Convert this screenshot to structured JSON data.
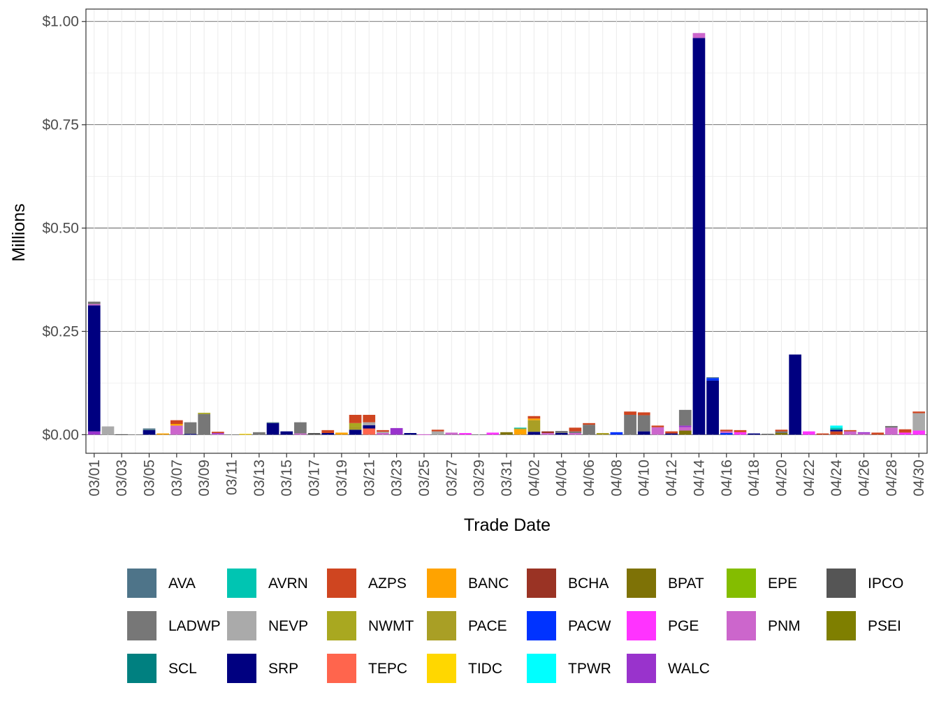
{
  "chart_data": {
    "type": "bar",
    "stacked": true,
    "title": "",
    "xlabel": "Trade Date",
    "ylabel": "Millions",
    "ylim": [
      -0.045,
      1.03
    ],
    "y_ticks": [
      0,
      0.25,
      0.5,
      0.75,
      1.0
    ],
    "y_tick_labels": [
      "$0.00",
      "$0.25",
      "$0.50",
      "$0.75",
      "$1.00"
    ],
    "grid": true,
    "legend_position": "bottom",
    "categories": [
      "03/01",
      "03/02",
      "03/03",
      "03/04",
      "03/05",
      "03/06",
      "03/07",
      "03/08",
      "03/09",
      "03/10",
      "03/11",
      "03/12",
      "03/13",
      "03/14",
      "03/15",
      "03/16",
      "03/17",
      "03/18",
      "03/19",
      "03/20",
      "03/21",
      "03/22",
      "03/23",
      "03/24",
      "03/25",
      "03/26",
      "03/27",
      "03/28",
      "03/29",
      "03/30",
      "03/31",
      "04/01",
      "04/02",
      "04/03",
      "04/04",
      "04/05",
      "04/06",
      "04/07",
      "04/08",
      "04/09",
      "04/10",
      "04/11",
      "04/12",
      "04/13",
      "04/14",
      "04/15",
      "04/16",
      "04/17",
      "04/18",
      "04/19",
      "04/20",
      "04/21",
      "04/22",
      "04/23",
      "04/24",
      "04/25",
      "04/26",
      "04/27",
      "04/28",
      "04/29",
      "04/30"
    ],
    "x_tick_labels": [
      "03/01",
      "03/03",
      "03/05",
      "03/07",
      "03/09",
      "03/11",
      "03/13",
      "03/15",
      "03/17",
      "03/19",
      "03/21",
      "03/23",
      "03/25",
      "03/27",
      "03/29",
      "03/31",
      "04/02",
      "04/04",
      "04/06",
      "04/08",
      "04/10",
      "04/12",
      "04/14",
      "04/16",
      "04/18",
      "04/20",
      "04/22",
      "04/24",
      "04/26",
      "04/28",
      "04/30"
    ],
    "legend": [
      {
        "name": "AVA",
        "color": "#4E7489"
      },
      {
        "name": "AVRN",
        "color": "#00C5B2"
      },
      {
        "name": "AZPS",
        "color": "#CF4520"
      },
      {
        "name": "BANC",
        "color": "#FFA300"
      },
      {
        "name": "BCHA",
        "color": "#9A3324"
      },
      {
        "name": "BPAT",
        "color": "#7E7206"
      },
      {
        "name": "EPE",
        "color": "#84BD00"
      },
      {
        "name": "IPCO",
        "color": "#555555"
      },
      {
        "name": "LADWP",
        "color": "#777777"
      },
      {
        "name": "NEVP",
        "color": "#AAAAAA"
      },
      {
        "name": "NWMT",
        "color": "#A9A820"
      },
      {
        "name": "PACE",
        "color": "#A99F25"
      },
      {
        "name": "PACW",
        "color": "#0033FF"
      },
      {
        "name": "PGE",
        "color": "#FF33FF"
      },
      {
        "name": "PNM",
        "color": "#CC66CC"
      },
      {
        "name": "PSEI",
        "color": "#7F7F00"
      },
      {
        "name": "SCL",
        "color": "#008080"
      },
      {
        "name": "SRP",
        "color": "#000080"
      },
      {
        "name": "TEPC",
        "color": "#FF654D"
      },
      {
        "name": "TIDC",
        "color": "#FFD700"
      },
      {
        "name": "TPWR",
        "color": "#00FFFF"
      },
      {
        "name": "WALC",
        "color": "#9933CC"
      }
    ],
    "bars": [
      {
        "date": "03/01",
        "segments": [
          {
            "name": "WALC",
            "value": 0.008
          },
          {
            "name": "SRP",
            "value": 0.305
          },
          {
            "name": "PNM",
            "value": 0.003
          },
          {
            "name": "LADWP",
            "value": 0.006
          }
        ]
      },
      {
        "date": "03/02",
        "segments": [
          {
            "name": "NEVP",
            "value": 0.02
          }
        ]
      },
      {
        "date": "03/03",
        "segments": [
          {
            "name": "IPCO",
            "value": 0.001
          }
        ]
      },
      {
        "date": "03/04",
        "segments": []
      },
      {
        "date": "03/05",
        "segments": [
          {
            "name": "SRP",
            "value": 0.011
          },
          {
            "name": "AVA",
            "value": 0.004
          }
        ]
      },
      {
        "date": "03/06",
        "segments": [
          {
            "name": "BANC",
            "value": 0.003
          }
        ]
      },
      {
        "date": "03/07",
        "segments": [
          {
            "name": "PNM",
            "value": 0.022
          },
          {
            "name": "BANC",
            "value": 0.004
          },
          {
            "name": "AZPS",
            "value": 0.009
          }
        ]
      },
      {
        "date": "03/08",
        "segments": [
          {
            "name": "SRP",
            "value": 0.002
          },
          {
            "name": "LADWP",
            "value": 0.028
          }
        ]
      },
      {
        "date": "03/09",
        "segments": [
          {
            "name": "LADWP",
            "value": 0.05
          },
          {
            "name": "NWMT",
            "value": 0.003
          }
        ]
      },
      {
        "date": "03/10",
        "segments": [
          {
            "name": "PNM",
            "value": 0.002
          },
          {
            "name": "WALC",
            "value": 0.002
          },
          {
            "name": "AZPS",
            "value": 0.003
          }
        ]
      },
      {
        "date": "03/11",
        "segments": []
      },
      {
        "date": "03/12",
        "segments": [
          {
            "name": "TIDC",
            "value": 0.002
          }
        ]
      },
      {
        "date": "03/13",
        "segments": [
          {
            "name": "LADWP",
            "value": 0.006
          }
        ]
      },
      {
        "date": "03/14",
        "segments": [
          {
            "name": "SRP",
            "value": 0.028
          },
          {
            "name": "AVA",
            "value": 0.002
          }
        ]
      },
      {
        "date": "03/15",
        "segments": [
          {
            "name": "SRP",
            "value": 0.008
          }
        ]
      },
      {
        "date": "03/16",
        "segments": [
          {
            "name": "PNM",
            "value": 0.003
          },
          {
            "name": "LADWP",
            "value": 0.027
          }
        ]
      },
      {
        "date": "03/17",
        "segments": [
          {
            "name": "IPCO",
            "value": 0.004
          }
        ]
      },
      {
        "date": "03/18",
        "segments": [
          {
            "name": "SRP",
            "value": 0.004
          },
          {
            "name": "AZPS",
            "value": 0.007
          }
        ]
      },
      {
        "date": "03/19",
        "segments": [
          {
            "name": "BANC",
            "value": 0.005
          }
        ]
      },
      {
        "date": "03/20",
        "segments": [
          {
            "name": "SRP",
            "value": 0.012
          },
          {
            "name": "PACE",
            "value": 0.008
          },
          {
            "name": "NWMT",
            "value": 0.008
          },
          {
            "name": "AZPS",
            "value": 0.02
          }
        ]
      },
      {
        "date": "03/21",
        "segments": [
          {
            "name": "TEPC",
            "value": 0.015
          },
          {
            "name": "SRP",
            "value": 0.008
          },
          {
            "name": "NEVP",
            "value": 0.007
          },
          {
            "name": "AZPS",
            "value": 0.018
          }
        ]
      },
      {
        "date": "03/22",
        "segments": [
          {
            "name": "PNM",
            "value": 0.004
          },
          {
            "name": "NEVP",
            "value": 0.003
          },
          {
            "name": "AZPS",
            "value": 0.004
          }
        ]
      },
      {
        "date": "03/23",
        "segments": [
          {
            "name": "WALC",
            "value": 0.016
          }
        ]
      },
      {
        "date": "03/24",
        "segments": [
          {
            "name": "SRP",
            "value": 0.004
          }
        ]
      },
      {
        "date": "03/25",
        "segments": [
          {
            "name": "PNM",
            "value": 0.001
          }
        ]
      },
      {
        "date": "03/26",
        "segments": [
          {
            "name": "NEVP",
            "value": 0.008
          },
          {
            "name": "AZPS",
            "value": 0.004
          }
        ]
      },
      {
        "date": "03/27",
        "segments": [
          {
            "name": "PNM",
            "value": 0.005
          }
        ]
      },
      {
        "date": "03/28",
        "segments": [
          {
            "name": "PGE",
            "value": 0.004
          }
        ]
      },
      {
        "date": "03/29",
        "segments": []
      },
      {
        "date": "03/30",
        "segments": [
          {
            "name": "PGE",
            "value": 0.005
          }
        ]
      },
      {
        "date": "03/31",
        "segments": [
          {
            "name": "BPAT",
            "value": 0.006
          }
        ]
      },
      {
        "date": "04/01",
        "segments": [
          {
            "name": "BANC",
            "value": 0.013
          },
          {
            "name": "PACE",
            "value": 0.002
          },
          {
            "name": "AVRN",
            "value": 0.002
          }
        ]
      },
      {
        "date": "04/02",
        "segments": [
          {
            "name": "SRP",
            "value": 0.007
          },
          {
            "name": "PACE",
            "value": 0.028
          },
          {
            "name": "BANC",
            "value": 0.004
          },
          {
            "name": "AZPS",
            "value": 0.006
          }
        ]
      },
      {
        "date": "04/03",
        "segments": [
          {
            "name": "PNM",
            "value": 0.004
          },
          {
            "name": "BCHA",
            "value": 0.004
          }
        ]
      },
      {
        "date": "04/04",
        "segments": [
          {
            "name": "SRP",
            "value": 0.004
          },
          {
            "name": "LADWP",
            "value": 0.005
          }
        ]
      },
      {
        "date": "04/05",
        "segments": [
          {
            "name": "PNM",
            "value": 0.004
          },
          {
            "name": "LADWP",
            "value": 0.004
          },
          {
            "name": "AZPS",
            "value": 0.009
          }
        ]
      },
      {
        "date": "04/06",
        "segments": [
          {
            "name": "LADWP",
            "value": 0.024
          },
          {
            "name": "AZPS",
            "value": 0.004
          }
        ]
      },
      {
        "date": "04/07",
        "segments": [
          {
            "name": "PACE",
            "value": 0.004
          }
        ]
      },
      {
        "date": "04/08",
        "segments": [
          {
            "name": "PACW",
            "value": 0.006
          }
        ]
      },
      {
        "date": "04/09",
        "segments": [
          {
            "name": "LADWP",
            "value": 0.048
          },
          {
            "name": "AZPS",
            "value": 0.008
          }
        ]
      },
      {
        "date": "04/10",
        "segments": [
          {
            "name": "SRP",
            "value": 0.008
          },
          {
            "name": "LADWP",
            "value": 0.039
          },
          {
            "name": "AZPS",
            "value": 0.007
          }
        ]
      },
      {
        "date": "04/11",
        "segments": [
          {
            "name": "PNM",
            "value": 0.018
          },
          {
            "name": "AZPS",
            "value": 0.004
          }
        ]
      },
      {
        "date": "04/12",
        "segments": [
          {
            "name": "SRP",
            "value": 0.003
          },
          {
            "name": "AZPS",
            "value": 0.005
          }
        ]
      },
      {
        "date": "04/13",
        "segments": [
          {
            "name": "BPAT",
            "value": 0.01
          },
          {
            "name": "PNM",
            "value": 0.008
          },
          {
            "name": "WALC",
            "value": 0.004
          },
          {
            "name": "LADWP",
            "value": 0.038
          }
        ]
      },
      {
        "date": "04/14",
        "segments": [
          {
            "name": "SRP",
            "value": 0.96
          },
          {
            "name": "PNM",
            "value": 0.012
          }
        ]
      },
      {
        "date": "04/15",
        "segments": [
          {
            "name": "SRP",
            "value": 0.131
          },
          {
            "name": "PACW",
            "value": 0.006
          },
          {
            "name": "AVA",
            "value": 0.002
          }
        ]
      },
      {
        "date": "04/16",
        "segments": [
          {
            "name": "PACW",
            "value": 0.004
          },
          {
            "name": "PNM",
            "value": 0.004
          },
          {
            "name": "AZPS",
            "value": 0.004
          }
        ]
      },
      {
        "date": "04/17",
        "segments": [
          {
            "name": "PGE",
            "value": 0.006
          },
          {
            "name": "AZPS",
            "value": 0.005
          }
        ]
      },
      {
        "date": "04/18",
        "segments": [
          {
            "name": "SRP",
            "value": 0.003
          }
        ]
      },
      {
        "date": "04/19",
        "segments": [
          {
            "name": "IPCO",
            "value": 0.002
          }
        ]
      },
      {
        "date": "04/20",
        "segments": [
          {
            "name": "BPAT",
            "value": 0.004
          },
          {
            "name": "LADWP",
            "value": 0.004
          },
          {
            "name": "AZPS",
            "value": 0.004
          }
        ]
      },
      {
        "date": "04/21",
        "segments": [
          {
            "name": "SRP",
            "value": 0.194
          }
        ]
      },
      {
        "date": "04/22",
        "segments": [
          {
            "name": "PGE",
            "value": 0.008
          }
        ]
      },
      {
        "date": "04/23",
        "segments": [
          {
            "name": "AZPS",
            "value": 0.003
          }
        ]
      },
      {
        "date": "04/24",
        "segments": [
          {
            "name": "AZPS",
            "value": 0.008
          },
          {
            "name": "SRP",
            "value": 0.004
          },
          {
            "name": "AVRN",
            "value": 0.005
          },
          {
            "name": "TPWR",
            "value": 0.005
          }
        ]
      },
      {
        "date": "04/25",
        "segments": [
          {
            "name": "PNM",
            "value": 0.008
          },
          {
            "name": "AZPS",
            "value": 0.003
          }
        ]
      },
      {
        "date": "04/26",
        "segments": [
          {
            "name": "PNM",
            "value": 0.003
          },
          {
            "name": "WALC",
            "value": 0.003
          }
        ]
      },
      {
        "date": "04/27",
        "segments": [
          {
            "name": "AZPS",
            "value": 0.005
          }
        ]
      },
      {
        "date": "04/28",
        "segments": [
          {
            "name": "PNM",
            "value": 0.017
          },
          {
            "name": "LADWP",
            "value": 0.004
          }
        ]
      },
      {
        "date": "04/29",
        "segments": [
          {
            "name": "PGE",
            "value": 0.005
          },
          {
            "name": "AZPS",
            "value": 0.008
          }
        ]
      },
      {
        "date": "04/30",
        "segments": [
          {
            "name": "PGE",
            "value": 0.01
          },
          {
            "name": "NEVP",
            "value": 0.042
          },
          {
            "name": "AZPS",
            "value": 0.004
          }
        ]
      }
    ]
  }
}
